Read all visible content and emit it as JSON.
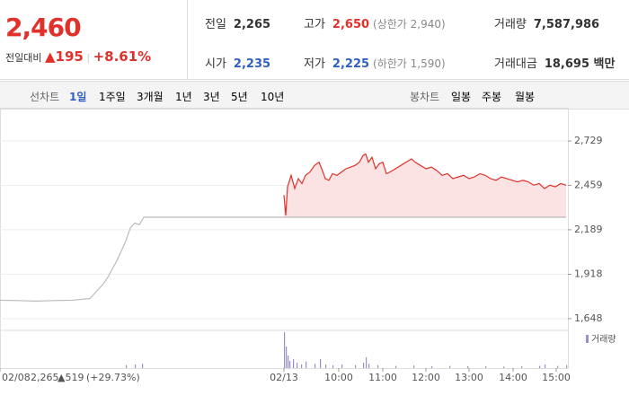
{
  "header": {
    "price": "2,460",
    "change_label": "전일대비",
    "change": "▲195",
    "change_pct": "+8.61%",
    "stats": [
      {
        "label": "전일",
        "value": "2,265"
      },
      {
        "label": "고가",
        "value": "2,650",
        "note": "(상한가 2,940)"
      },
      {
        "label": "거래량",
        "value": "7,587,986"
      },
      {
        "label": "시가",
        "value": "2,235"
      },
      {
        "label": "저가",
        "value": "2,225",
        "note": "(하한가 1,590)"
      },
      {
        "label": "거래대금",
        "value": "18,695 백만"
      }
    ]
  },
  "tabs": {
    "line_label": "선차트",
    "line": [
      "1일",
      "1주일",
      "3개월",
      "1년",
      "3년",
      "5년",
      "10년"
    ],
    "candle_label": "봉차트",
    "candle": [
      "일봉",
      "주봉",
      "월봉"
    ]
  },
  "chart_data": {
    "type": "line",
    "xlim": [
      0,
      632
    ],
    "ylim": [
      1593,
      2904
    ],
    "xticks": [
      {
        "value": 0,
        "label": "02/08"
      },
      {
        "value": 316,
        "label": "02/13"
      },
      {
        "value": 377,
        "label": "10:00"
      },
      {
        "value": 426,
        "label": "11:00"
      },
      {
        "value": 474,
        "label": "12:00"
      },
      {
        "value": 522,
        "label": "13:00"
      },
      {
        "value": 571,
        "label": "14:00"
      },
      {
        "value": 619,
        "label": "15:00"
      }
    ],
    "yticks": [
      {
        "value": 1648,
        "label": "1,648"
      },
      {
        "value": 1918,
        "label": "1,918"
      },
      {
        "value": 2189,
        "label": "2,189"
      },
      {
        "value": 2459,
        "label": "2,459"
      },
      {
        "value": 2729,
        "label": "2,729"
      }
    ],
    "base": 2265,
    "grid": true,
    "series": [
      {
        "color": "#bbbbbb",
        "x": [
          0,
          20,
          40,
          60,
          80,
          100,
          105,
          110,
          115,
          120,
          125,
          130,
          135,
          140,
          145,
          150,
          155,
          160,
          316
        ],
        "values": [
          1760,
          1758,
          1755,
          1758,
          1760,
          1770,
          1800,
          1830,
          1860,
          1900,
          1950,
          2000,
          2060,
          2120,
          2200,
          2230,
          2220,
          2265,
          2265
        ]
      },
      {
        "color": "#e0312b",
        "fill": "#fbe3e3",
        "x": [
          316,
          318,
          320,
          324,
          328,
          332,
          336,
          340,
          345,
          350,
          355,
          358,
          362,
          366,
          370,
          375,
          380,
          385,
          390,
          395,
          400,
          404,
          407,
          410,
          414,
          418,
          422,
          426,
          430,
          434,
          440,
          446,
          452,
          458,
          462,
          468,
          474,
          480,
          486,
          492,
          498,
          504,
          510,
          516,
          522,
          528,
          534,
          540,
          546,
          552,
          558,
          564,
          570,
          576,
          582,
          588,
          594,
          600,
          606,
          612,
          618,
          624,
          630
        ],
        "values": [
          2400,
          2276,
          2450,
          2520,
          2440,
          2500,
          2470,
          2520,
          2540,
          2580,
          2600,
          2560,
          2500,
          2490,
          2530,
          2520,
          2540,
          2560,
          2570,
          2580,
          2600,
          2640,
          2650,
          2600,
          2630,
          2560,
          2590,
          2600,
          2530,
          2540,
          2560,
          2580,
          2600,
          2620,
          2600,
          2580,
          2560,
          2570,
          2550,
          2520,
          2530,
          2500,
          2510,
          2520,
          2500,
          2510,
          2530,
          2520,
          2500,
          2490,
          2510,
          2500,
          2490,
          2480,
          2490,
          2480,
          2460,
          2470,
          2440,
          2460,
          2450,
          2470,
          2460
        ]
      }
    ],
    "volume": {
      "name": "거래량",
      "color": "#9b8fc4",
      "vlim": [
        0,
        100
      ],
      "x": [
        140,
        150,
        158,
        316,
        318,
        320,
        322,
        326,
        330,
        335,
        340,
        350,
        356,
        362,
        370,
        380,
        395,
        404,
        407,
        410,
        420,
        440,
        460,
        480,
        500,
        520,
        540,
        560,
        580,
        600,
        606,
        620,
        630
      ],
      "values": [
        8,
        10,
        12,
        100,
        60,
        35,
        20,
        25,
        15,
        10,
        18,
        12,
        25,
        10,
        8,
        10,
        8,
        15,
        30,
        12,
        8,
        6,
        7,
        5,
        6,
        5,
        5,
        4,
        5,
        6,
        10,
        6,
        8
      ]
    },
    "footer": {
      "date": "02/08",
      "price": "2,265",
      "change": "▲519",
      "pct": "(+29.73%)"
    }
  }
}
